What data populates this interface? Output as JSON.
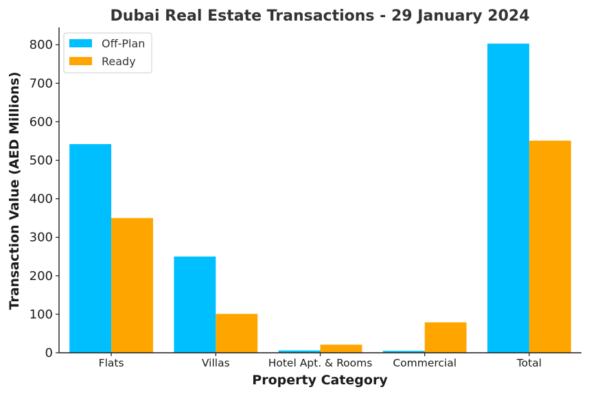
{
  "chart_data": {
    "type": "bar",
    "title": "Dubai Real Estate Transactions - 29 January 2024",
    "xlabel": "Property Category",
    "ylabel": "Transaction Value (AED Millions)",
    "categories": [
      "Flats",
      "Villas",
      "Hotel Apt. & Rooms",
      "Commercial",
      "Total"
    ],
    "series": [
      {
        "name": "Off-Plan",
        "color": "#00BFFF",
        "values": [
          542,
          250,
          6,
          5,
          803
        ]
      },
      {
        "name": "Ready",
        "color": "#FFA500",
        "values": [
          350,
          101,
          21,
          79,
          551
        ]
      }
    ],
    "ylim": [
      0,
      845
    ],
    "yticks": [
      0,
      100,
      200,
      300,
      400,
      500,
      600,
      700,
      800
    ],
    "legend": "top-left",
    "grid": false
  }
}
